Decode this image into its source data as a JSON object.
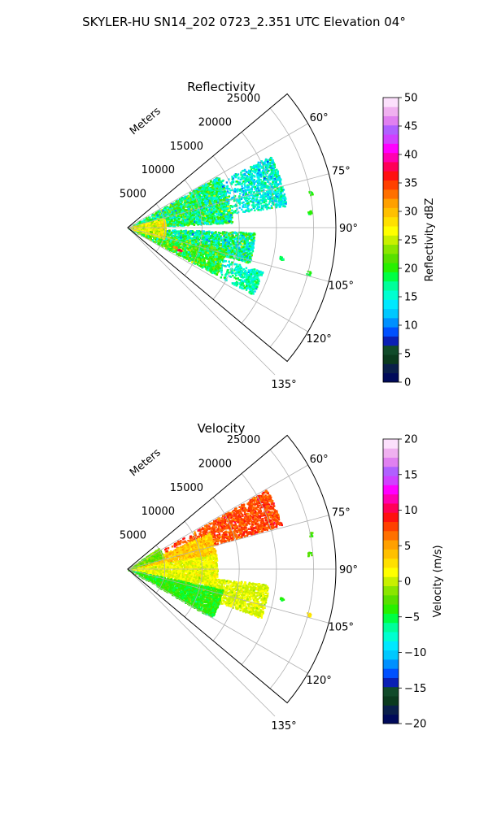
{
  "figure": {
    "suptitle": "SKYLER-HU  SN14_202  0723_2.351 UTC Elevation 04°"
  },
  "chart_data": [
    {
      "type": "heatmap",
      "projection": "polar-sector",
      "title": "Reflectivity",
      "range_label": "Meters",
      "range_ticks": [
        5000,
        10000,
        15000,
        20000,
        25000
      ],
      "range_tick_labels": [
        "5000",
        "10000",
        "15000",
        "20000",
        "25000"
      ],
      "rlim": [
        0,
        28000
      ],
      "azimuth_ticks": [
        60,
        75,
        90,
        105,
        120,
        135
      ],
      "azimuth_tick_labels": [
        "60°",
        "75°",
        "90°",
        "105°",
        "120°",
        "135°"
      ],
      "azimuth_range": [
        50,
        130
      ],
      "grid": true,
      "colorbar": {
        "label": "Reflectivity dBZ",
        "min": 0,
        "max": 50,
        "ticks": [
          0,
          5,
          10,
          15,
          20,
          25,
          30,
          35,
          40,
          45,
          50
        ],
        "tick_labels": [
          "0",
          "5",
          "10",
          "15",
          "20",
          "25",
          "30",
          "35",
          "40",
          "45",
          "50"
        ],
        "colors": [
          "#000a5a",
          "#0a1f4a",
          "#0b3a1e",
          "#114a2a",
          "#0a1fb4",
          "#0050ff",
          "#0090ff",
          "#00c8ff",
          "#00e8ff",
          "#00ffd0",
          "#00ff9a",
          "#00ff44",
          "#28f000",
          "#58e000",
          "#8ae600",
          "#c8f000",
          "#ffff00",
          "#ffe000",
          "#ffc000",
          "#ffa000",
          "#ff7000",
          "#ff4000",
          "#ff1010",
          "#ff0058",
          "#ff00b0",
          "#ff00ff",
          "#d040ff",
          "#b060ff",
          "#e080f0",
          "#f0b0f0",
          "#fce0fc"
        ]
      },
      "echo_regions": [
        {
          "az_min": 60,
          "az_max": 87,
          "r_min": 0,
          "r_max": 14000,
          "value": 18,
          "spread": 7
        },
        {
          "az_min": 63,
          "az_max": 82,
          "r_min": 13000,
          "r_max": 21500,
          "value": 15,
          "spread": 5
        },
        {
          "az_min": 92,
          "az_max": 106,
          "r_min": 0,
          "r_max": 17000,
          "value": 17,
          "spread": 7
        },
        {
          "az_min": 102,
          "az_max": 118,
          "r_min": 0,
          "r_max": 13500,
          "value": 20,
          "spread": 6
        },
        {
          "az_min": 108,
          "az_max": 118,
          "r_min": 13000,
          "r_max": 19000,
          "value": 16,
          "spread": 4
        },
        {
          "az_min": 74,
          "az_max": 106,
          "r_min": 0,
          "r_max": 5000,
          "value": 26,
          "spread": 4
        }
      ],
      "echo_points": [
        {
          "az": 113,
          "r": 7500,
          "value": 37
        },
        {
          "az": 112,
          "r": 6800,
          "value": 33
        },
        {
          "az": 79,
          "r": 25000,
          "value": 20
        },
        {
          "az": 85,
          "r": 24500,
          "value": 20
        },
        {
          "az": 101,
          "r": 21000,
          "value": 18
        },
        {
          "az": 104,
          "r": 25000,
          "value": 19
        }
      ]
    },
    {
      "type": "heatmap",
      "projection": "polar-sector",
      "title": "Velocity",
      "range_label": "Meters",
      "range_ticks": [
        5000,
        10000,
        15000,
        20000,
        25000
      ],
      "range_tick_labels": [
        "5000",
        "10000",
        "15000",
        "20000",
        "25000"
      ],
      "rlim": [
        0,
        28000
      ],
      "azimuth_ticks": [
        60,
        75,
        90,
        105,
        120,
        135
      ],
      "azimuth_tick_labels": [
        "60°",
        "75°",
        "90°",
        "105°",
        "120°",
        "135°"
      ],
      "azimuth_range": [
        50,
        130
      ],
      "grid": true,
      "colorbar": {
        "label": "Velocity (m/s)",
        "min": -20,
        "max": 20,
        "ticks": [
          -20,
          -15,
          -10,
          -5,
          0,
          5,
          10,
          15,
          20
        ],
        "tick_labels": [
          "−20",
          "−15",
          "−10",
          "−5",
          "0",
          "5",
          "10",
          "15",
          "20"
        ],
        "colors": [
          "#000a5a",
          "#0a1f4a",
          "#0b3a1e",
          "#114a2a",
          "#0a1fb4",
          "#0050ff",
          "#0090ff",
          "#00c8ff",
          "#00e8ff",
          "#00ffd0",
          "#00ff9a",
          "#00ff44",
          "#28f000",
          "#58e000",
          "#8ae600",
          "#c8f000",
          "#ffff00",
          "#ffe000",
          "#ffc000",
          "#ffa000",
          "#ff7000",
          "#ff4000",
          "#ff1010",
          "#ff0058",
          "#ff00b0",
          "#ff00ff",
          "#d040ff",
          "#b060ff",
          "#e080f0",
          "#f0b0f0",
          "#fce0fc"
        ]
      },
      "echo_regions": [
        {
          "az_min": 60,
          "az_max": 74,
          "r_min": 5000,
          "r_max": 21500,
          "value": 7.5,
          "spread": 2
        },
        {
          "az_min": 66,
          "az_max": 80,
          "r_min": 0,
          "r_max": 12000,
          "value": 3.5,
          "spread": 2
        },
        {
          "az_min": 80,
          "az_max": 100,
          "r_min": 0,
          "r_max": 12000,
          "value": 1,
          "spread": 1.5
        },
        {
          "az_min": 96,
          "az_max": 110,
          "r_min": 4000,
          "r_max": 19000,
          "value": 0.5,
          "spread": 1.5
        },
        {
          "az_min": 102,
          "az_max": 120,
          "r_min": 0,
          "r_max": 13000,
          "value": -4,
          "spread": 2
        },
        {
          "az_min": 55,
          "az_max": 72,
          "r_min": 0,
          "r_max": 5000,
          "value": -2,
          "spread": 2
        }
      ],
      "echo_points": [
        {
          "az": 79,
          "r": 25000,
          "value": -3
        },
        {
          "az": 85,
          "r": 24500,
          "value": -3
        },
        {
          "az": 101,
          "r": 21000,
          "value": -4
        },
        {
          "az": 104,
          "r": 25000,
          "value": 2
        }
      ]
    }
  ]
}
